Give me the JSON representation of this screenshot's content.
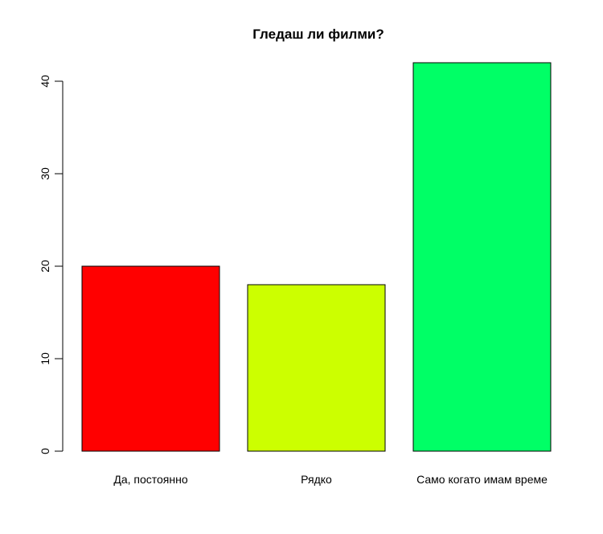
{
  "chart_data": {
    "type": "bar",
    "title": "Гледаш ли филми?",
    "categories": [
      "Да, постоянно",
      "Рядко",
      "Само когато имам време"
    ],
    "values": [
      20,
      18,
      42
    ],
    "colors": [
      "#ff0000",
      "#ccff00",
      "#00ff66"
    ],
    "ylim": [
      0,
      42
    ],
    "yticks": [
      "0",
      "10",
      "20",
      "30",
      "40"
    ],
    "xlabel": "",
    "ylabel": "",
    "grid": false,
    "legend": "none"
  }
}
